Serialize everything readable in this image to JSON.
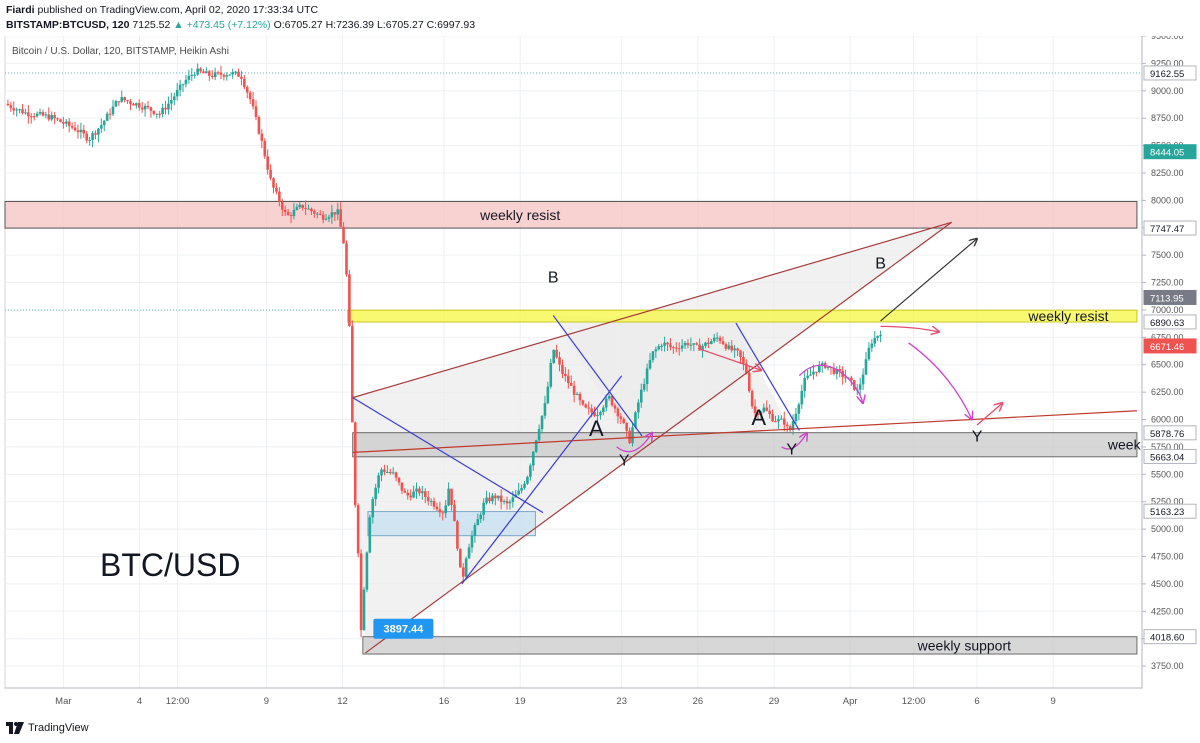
{
  "header": {
    "author": "Fiardi",
    "published": "published on TradingView.com, April 02, 2020 17:33:34 UTC",
    "symbol": "BITSTAMP:BTCUSD, 120",
    "last": "7125.52",
    "change": "▲ +473.45 (+7.12%)",
    "open": "O:6705.27",
    "high": "H:7236.39",
    "low": "L:6705.27",
    "close": "C:6997.93"
  },
  "footer": {
    "brand": "TradingView"
  },
  "chart_data": {
    "type": "candlestick",
    "title": "Bitcoin / U.S. Dollar, 120, BITSTAMP, Heikin Ashi",
    "watermark": "BTC/USD",
    "ylim": [
      3550,
      9500
    ],
    "y_ticks": [
      3750,
      4000,
      4250,
      4500,
      4750,
      5000,
      5250,
      5500,
      5750,
      6000,
      6250,
      6500,
      6750,
      7000,
      7250,
      7500,
      7750,
      8000,
      8250,
      8500,
      8750,
      9000,
      9250,
      9500
    ],
    "y_tick_labels": [
      "3750.00",
      "4000.00",
      "4250.00",
      "4500.00",
      "4750.00",
      "5000.00",
      "5250.00",
      "5500.00",
      "5750.00",
      "6000.00",
      "6250.00",
      "6500.00",
      "6750.00",
      "7000.00",
      "7250.00",
      "7500.00",
      "7750.00",
      "8000.00",
      "8250.00",
      "8500.00",
      "8750.00",
      "9000.00",
      "9250.00",
      "9500.00"
    ],
    "x_range_days": [
      -2.3,
      42.5
    ],
    "x_ticks": [
      {
        "t": 0,
        "label": "Mar"
      },
      {
        "t": 3,
        "label": "4"
      },
      {
        "t": 4.5,
        "label": "12:00"
      },
      {
        "t": 8,
        "label": "9"
      },
      {
        "t": 11,
        "label": "12"
      },
      {
        "t": 15,
        "label": "16"
      },
      {
        "t": 18,
        "label": "19"
      },
      {
        "t": 22,
        "label": "23"
      },
      {
        "t": 25,
        "label": "26"
      },
      {
        "t": 28,
        "label": "29"
      },
      {
        "t": 31,
        "label": "Apr"
      },
      {
        "t": 33.5,
        "label": "12:00"
      },
      {
        "t": 36,
        "label": "6"
      },
      {
        "t": 39,
        "label": "9"
      }
    ],
    "price_path": [
      [
        -2.3,
        8880
      ],
      [
        -1.5,
        8800
      ],
      [
        -0.5,
        8760
      ],
      [
        0.5,
        8650
      ],
      [
        1.0,
        8560
      ],
      [
        1.5,
        8690
      ],
      [
        2.2,
        8930
      ],
      [
        3.0,
        8870
      ],
      [
        3.8,
        8790
      ],
      [
        4.2,
        8900
      ],
      [
        4.8,
        9090
      ],
      [
        5.2,
        9180
      ],
      [
        5.8,
        9140
      ],
      [
        6.6,
        9160
      ],
      [
        7.0,
        9140
      ],
      [
        7.4,
        8900
      ],
      [
        7.8,
        8550
      ],
      [
        8.2,
        8150
      ],
      [
        8.8,
        7850
      ],
      [
        9.4,
        7950
      ],
      [
        10.2,
        7850
      ],
      [
        10.8,
        7900
      ],
      [
        11.1,
        7550
      ],
      [
        11.3,
        6700
      ],
      [
        11.45,
        5400
      ],
      [
        11.6,
        4900
      ],
      [
        11.75,
        3950
      ],
      [
        11.85,
        4500
      ],
      [
        12.1,
        5200
      ],
      [
        12.5,
        5550
      ],
      [
        13.0,
        5500
      ],
      [
        13.5,
        5300
      ],
      [
        14.0,
        5350
      ],
      [
        14.5,
        5250
      ],
      [
        15.0,
        5150
      ],
      [
        15.2,
        5400
      ],
      [
        15.5,
        4900
      ],
      [
        15.7,
        4500
      ],
      [
        15.9,
        4800
      ],
      [
        16.2,
        5000
      ],
      [
        16.6,
        5250
      ],
      [
        17.0,
        5300
      ],
      [
        17.5,
        5220
      ],
      [
        18.0,
        5350
      ],
      [
        18.3,
        5500
      ],
      [
        18.7,
        5900
      ],
      [
        19.0,
        6150
      ],
      [
        19.3,
        6650
      ],
      [
        19.6,
        6450
      ],
      [
        20.0,
        6300
      ],
      [
        20.5,
        6100
      ],
      [
        21.0,
        6050
      ],
      [
        21.5,
        6200
      ],
      [
        22.0,
        6000
      ],
      [
        22.3,
        5800
      ],
      [
        22.7,
        6200
      ],
      [
        23.2,
        6600
      ],
      [
        23.6,
        6700
      ],
      [
        24.0,
        6650
      ],
      [
        24.6,
        6700
      ],
      [
        25.0,
        6650
      ],
      [
        25.4,
        6700
      ],
      [
        25.8,
        6750
      ],
      [
        26.2,
        6650
      ],
      [
        26.6,
        6600
      ],
      [
        26.9,
        6450
      ],
      [
        27.2,
        6050
      ],
      [
        27.6,
        6100
      ],
      [
        28.0,
        6000
      ],
      [
        28.4,
        5980
      ],
      [
        28.6,
        5880
      ],
      [
        28.9,
        6100
      ],
      [
        29.2,
        6350
      ],
      [
        29.6,
        6450
      ],
      [
        30.0,
        6500
      ],
      [
        30.3,
        6450
      ],
      [
        30.6,
        6420
      ],
      [
        31.0,
        6350
      ],
      [
        31.3,
        6250
      ],
      [
        31.6,
        6500
      ],
      [
        31.8,
        6700
      ],
      [
        32.2,
        6800
      ]
    ],
    "horizontal_levels": [
      {
        "price": 9162.55,
        "label": "9162.55",
        "style": "dotted-teal"
      },
      {
        "price": 6997.93,
        "style": "dotted-teal",
        "from_t": -2.3,
        "to_t": 11.2
      }
    ],
    "price_tags": [
      {
        "price": 9162.55,
        "label": "9162.55",
        "color": "#ffffff",
        "text": "#131722"
      },
      {
        "price": 8444.05,
        "label": "8444.05",
        "color": "#26a69a",
        "text": "#ffffff"
      },
      {
        "price": 7747.47,
        "label": "7747.47",
        "color": "#ffffff",
        "text": "#131722"
      },
      {
        "price": 7113.95,
        "label": "7113.95",
        "color": "#787b86",
        "text": "#ffffff"
      },
      {
        "price": 6890.63,
        "label": "6890.63",
        "color": "#ffffff",
        "text": "#131722"
      },
      {
        "price": 6671.46,
        "label": "6671.46",
        "color": "#ef5350",
        "text": "#ffffff"
      },
      {
        "price": 5878.76,
        "label": "5878.76",
        "color": "#ffffff",
        "text": "#131722"
      },
      {
        "price": 5663.04,
        "label": "5663.04",
        "color": "#ffffff",
        "text": "#131722"
      },
      {
        "price": 5163.23,
        "label": "5163.23",
        "color": "#ffffff",
        "text": "#131722"
      },
      {
        "price": 4018.6,
        "label": "4018.60",
        "color": "#ffffff",
        "text": "#131722"
      }
    ],
    "zones": [
      {
        "p1": 7990,
        "p2": 7747,
        "t1": -2.3,
        "t2": 42.3,
        "fill": "#f5c2c2",
        "stroke": "#555555",
        "label": "weekly resist",
        "label_t": 18.0
      },
      {
        "p1": 6998,
        "p2": 6890,
        "t1": 11.2,
        "t2": 42.3,
        "fill": "#f5f542",
        "stroke": "#c9c91a",
        "label": "weekly resist",
        "label_t": 39.6
      },
      {
        "p1": 5880,
        "p2": 5660,
        "t1": 11.4,
        "t2": 42.3,
        "fill": "#c9c9c9",
        "stroke": "#6b6b6b",
        "label": "week",
        "label_t": 41.8
      },
      {
        "p1": 5160,
        "p2": 4940,
        "t1": 12.0,
        "t2": 18.6,
        "fill": "#c6dff0",
        "stroke": "#7aa8c7",
        "label": "",
        "label_t": 0
      },
      {
        "p1": 4018,
        "p2": 3860,
        "t1": 11.8,
        "t2": 42.3,
        "fill": "#c9c9c9",
        "stroke": "#6b6b6b",
        "label": "weekly support",
        "label_t": 35.5
      }
    ],
    "triangles": [
      {
        "points": [
          [
            11.4,
            6200
          ],
          [
            35.0,
            7800
          ],
          [
            11.9,
            3870
          ]
        ],
        "fill": "#ebebeb"
      },
      {
        "points": [
          [
            19.3,
            6950
          ],
          [
            26.5,
            6880
          ],
          [
            28.7,
            5880
          ],
          [
            22.3,
            5800
          ]
        ],
        "fill": "#ebebeb"
      }
    ],
    "trend_lines": [
      {
        "from": [
          11.4,
          6200
        ],
        "to": [
          35.0,
          7800
        ],
        "color": "#a83a3a"
      },
      {
        "from": [
          11.9,
          3870
        ],
        "to": [
          35.0,
          7800
        ],
        "color": "#a83a3a"
      },
      {
        "from": [
          11.4,
          5700
        ],
        "to": [
          42.3,
          6080
        ],
        "color": "#c0392b"
      },
      {
        "from": [
          11.4,
          6200
        ],
        "to": [
          18.9,
          5150
        ],
        "color": "#3b3bd6"
      },
      {
        "from": [
          15.7,
          4500
        ],
        "to": [
          22.0,
          6400
        ],
        "color": "#3b3bd6"
      },
      {
        "from": [
          19.3,
          6950
        ],
        "to": [
          22.8,
          5850
        ],
        "color": "#3b3bd6"
      },
      {
        "from": [
          26.5,
          6880
        ],
        "to": [
          29.0,
          5900
        ],
        "color": "#3b3bd6"
      },
      {
        "from": [
          32.2,
          6900
        ],
        "to": [
          36.0,
          7650
        ],
        "color": "#333333",
        "arrow": true
      }
    ],
    "projection_arrows": [
      {
        "points": [
          [
            25.0,
            6650
          ],
          [
            27.5,
            6450
          ]
        ],
        "color": "#e84c6b"
      },
      {
        "points": [
          [
            32.2,
            6850
          ],
          [
            33.5,
            6850
          ],
          [
            34.5,
            6800
          ]
        ],
        "color": "#e84c6b"
      },
      {
        "points": [
          [
            36.0,
            5950
          ],
          [
            37.0,
            6150
          ]
        ],
        "color": "#e84c6b"
      },
      {
        "points": [
          [
            29.0,
            6400
          ],
          [
            30.0,
            6650
          ],
          [
            31.3,
            6350
          ],
          [
            31.5,
            6150
          ]
        ],
        "color": "#cc44cc"
      },
      {
        "points": [
          [
            33.3,
            6700
          ],
          [
            34.5,
            6500
          ],
          [
            35.3,
            6250
          ],
          [
            35.8,
            6000
          ]
        ],
        "color": "#cc44cc"
      },
      {
        "points": [
          [
            21.8,
            5750
          ],
          [
            22.5,
            5620
          ],
          [
            23.2,
            5880
          ]
        ],
        "color": "#cc44cc"
      },
      {
        "points": [
          [
            28.3,
            5750
          ],
          [
            28.8,
            5680
          ],
          [
            29.3,
            5880
          ]
        ],
        "color": "#cc44cc"
      }
    ],
    "wave_labels": [
      {
        "text": "B",
        "t": 19.3,
        "p": 7250
      },
      {
        "text": "A",
        "t": 21.0,
        "p": 5850
      },
      {
        "text": "Y",
        "t": 22.1,
        "p": 5580
      },
      {
        "text": "A",
        "t": 27.4,
        "p": 5950
      },
      {
        "text": "Y",
        "t": 28.7,
        "p": 5680
      },
      {
        "text": "B",
        "t": 32.2,
        "p": 7380
      },
      {
        "text": "Y",
        "t": 36.0,
        "p": 5800
      }
    ],
    "low_marker": {
      "t": 11.9,
      "p": 4000,
      "label": "3897.44"
    }
  }
}
